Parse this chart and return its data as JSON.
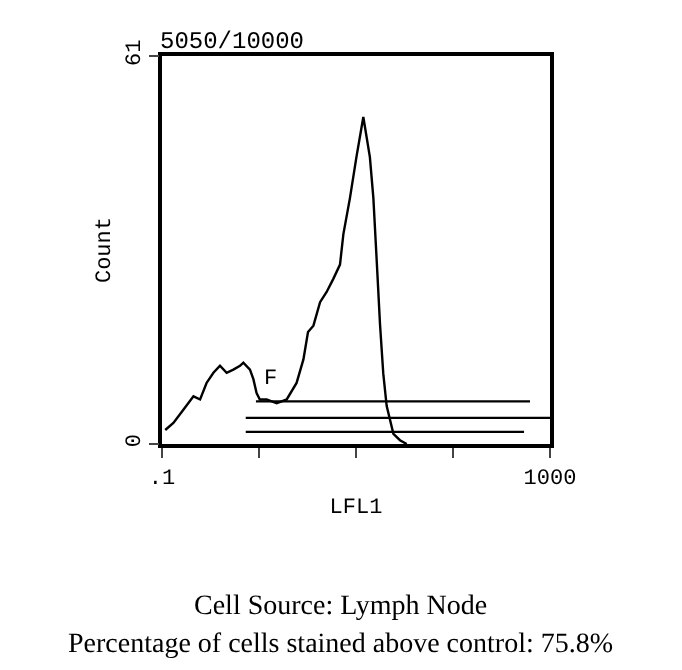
{
  "chart_data": {
    "type": "line",
    "title": "5050/10000",
    "xlabel": "LFL1",
    "ylabel": "Count",
    "log": "x",
    "xlim": [
      0.1,
      1000
    ],
    "ylim": [
      0,
      61
    ],
    "xticks": [
      {
        "value": 0.1,
        "label": ".1"
      },
      {
        "value": 1,
        "label": null
      },
      {
        "value": 10,
        "label": null
      },
      {
        "value": 100,
        "label": null
      },
      1000
    ],
    "yticks": [
      0,
      61
    ],
    "annotations": [
      "F",
      "Cell Source: Lymph Node",
      "Percentage of cells stained above control: 75.8%"
    ],
    "series": [
      {
        "color": "#000000",
        "x": [
          0.108,
          0.131,
          0.166,
          0.211,
          0.247,
          0.288,
          0.339,
          0.396,
          0.464,
          0.544,
          0.637,
          0.69,
          0.807,
          0.875,
          0.944,
          1.02,
          1.2,
          1.52,
          1.93,
          2.44,
          2.87,
          3.2,
          3.64,
          4.26,
          4.98,
          5.85,
          6.84,
          7.41,
          8.67,
          10.1,
          11.9,
          13.9,
          15.1,
          16.3,
          17.7,
          19.1,
          20.7,
          24.3,
          28.4,
          33.3
        ],
        "values": [
          2.2,
          3.3,
          5.4,
          7.5,
          7.0,
          9.6,
          11.2,
          12.3,
          11.2,
          11.7,
          12.3,
          12.8,
          11.7,
          10.2,
          8.0,
          7.0,
          7.0,
          6.4,
          7.0,
          9.6,
          13.3,
          17.6,
          18.6,
          22.3,
          23.9,
          26.0,
          28.2,
          33.0,
          38.7,
          45.1,
          51.4,
          45.1,
          38.7,
          29.2,
          18.7,
          11.1,
          6.0,
          1.6,
          0.6,
          0
        ]
      },
      {
        "color": "#000000",
        "x": [
          0.93,
          622
        ],
        "values": [
          6.7,
          6.7
        ]
      },
      {
        "color": "#000000",
        "x": [
          0.73,
          1000
        ],
        "values": [
          4.1,
          4.1
        ]
      },
      {
        "color": "#000000",
        "x": [
          0.73,
          540
        ],
        "values": [
          1.9,
          1.9
        ]
      }
    ]
  }
}
